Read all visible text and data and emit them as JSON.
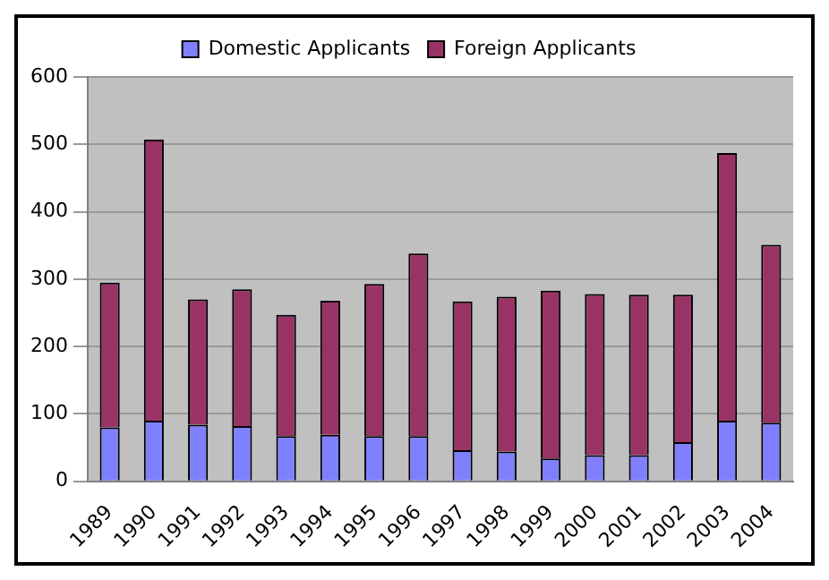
{
  "chart_data": {
    "type": "bar",
    "stacked": true,
    "categories": [
      "1989",
      "1990",
      "1991",
      "1992",
      "1993",
      "1994",
      "1995",
      "1996",
      "1997",
      "1998",
      "1999",
      "2000",
      "2001",
      "2002",
      "2003",
      "2004"
    ],
    "series": [
      {
        "name": "Domestic Applicants",
        "color": "#8080ff",
        "values": [
          80,
          90,
          84,
          82,
          67,
          69,
          67,
          67,
          46,
          44,
          34,
          39,
          39,
          58,
          90,
          87
        ]
      },
      {
        "name": "Foreign Applicants",
        "color": "#993366",
        "values": [
          215,
          417,
          186,
          203,
          180,
          199,
          226,
          271,
          221,
          230,
          249,
          239,
          238,
          219,
          397,
          264
        ]
      }
    ],
    "ylim": [
      0,
      600
    ],
    "yticks": [
      0,
      100,
      200,
      300,
      400,
      500,
      600
    ],
    "grid": "y",
    "legend": "top"
  }
}
